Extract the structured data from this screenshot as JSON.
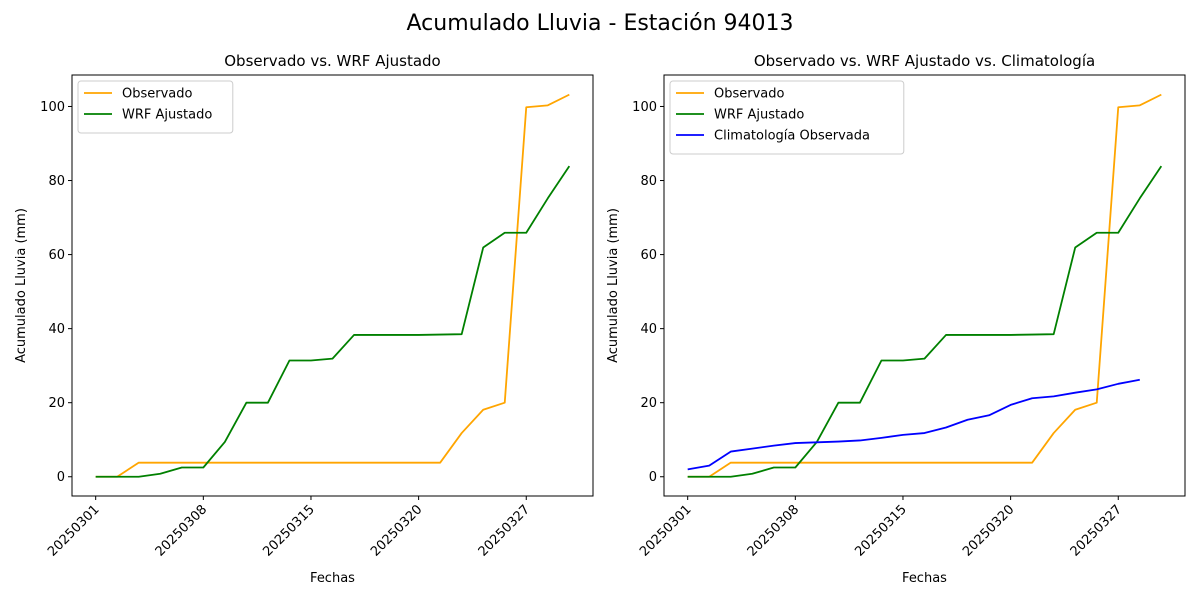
{
  "suptitle": "Acumulado Lluvia - Estación 94013",
  "colors": {
    "observado": "#ffa500",
    "wrf": "#008000",
    "clima": "#0000ff"
  },
  "chart_data": [
    {
      "type": "line",
      "title": "Observado vs. WRF Ajustado",
      "xlabel": "Fechas",
      "ylabel": "Acumulado Lluvia (mm)",
      "xtick_labels": [
        "20250301",
        "20250308",
        "20250315",
        "20250320",
        "20250327"
      ],
      "xtick_index": [
        0,
        5,
        10,
        15,
        20
      ],
      "xlim": [
        -1.1,
        23.1
      ],
      "ylim": [
        -5.2,
        108.5
      ],
      "yticks": [
        0,
        20,
        40,
        60,
        80,
        100
      ],
      "legend": "top-left",
      "series": [
        {
          "name": "Observado",
          "color": "#ffa500",
          "values": [
            0,
            0,
            3.8,
            3.8,
            3.8,
            3.8,
            3.8,
            3.8,
            3.8,
            3.8,
            3.8,
            3.8,
            3.8,
            3.8,
            3.8,
            3.8,
            3.8,
            11.8,
            18.1,
            20.0,
            99.8,
            100.3,
            103.2
          ]
        },
        {
          "name": "WRF Ajustado",
          "color": "#008000",
          "values": [
            0,
            0,
            0,
            0.8,
            2.5,
            2.5,
            9.4,
            20.0,
            20.0,
            31.4,
            31.4,
            31.9,
            38.3,
            38.3,
            38.3,
            38.3,
            38.4,
            38.5,
            61.9,
            65.9,
            65.9,
            75.2,
            83.9
          ]
        }
      ]
    },
    {
      "type": "line",
      "title": "Observado vs. WRF Ajustado vs. Climatología",
      "xlabel": "Fechas",
      "ylabel": "Acumulado Lluvia (mm)",
      "xtick_labels": [
        "20250301",
        "20250308",
        "20250315",
        "20250320",
        "20250327"
      ],
      "xtick_index": [
        0,
        5,
        10,
        15,
        20
      ],
      "xlim": [
        -1.1,
        23.1
      ],
      "ylim": [
        -5.2,
        108.5
      ],
      "yticks": [
        0,
        20,
        40,
        60,
        80,
        100
      ],
      "legend": "top-left",
      "series": [
        {
          "name": "Observado",
          "color": "#ffa500",
          "values": [
            0,
            0,
            3.8,
            3.8,
            3.8,
            3.8,
            3.8,
            3.8,
            3.8,
            3.8,
            3.8,
            3.8,
            3.8,
            3.8,
            3.8,
            3.8,
            3.8,
            11.8,
            18.1,
            20.0,
            99.8,
            100.3,
            103.2
          ]
        },
        {
          "name": "WRF Ajustado",
          "color": "#008000",
          "values": [
            0,
            0,
            0,
            0.8,
            2.5,
            2.5,
            9.4,
            20.0,
            20.0,
            31.4,
            31.4,
            31.9,
            38.3,
            38.3,
            38.3,
            38.3,
            38.4,
            38.5,
            61.9,
            65.9,
            65.9,
            75.2,
            83.9
          ]
        },
        {
          "name": "Climatología Observada",
          "color": "#0000ff",
          "values": [
            2.0,
            3.0,
            6.8,
            7.6,
            8.4,
            9.1,
            9.3,
            9.5,
            9.8,
            10.5,
            11.3,
            11.8,
            13.3,
            15.4,
            16.6,
            19.4,
            21.2,
            21.7,
            22.7,
            23.6,
            25.1,
            26.2
          ]
        }
      ]
    }
  ]
}
